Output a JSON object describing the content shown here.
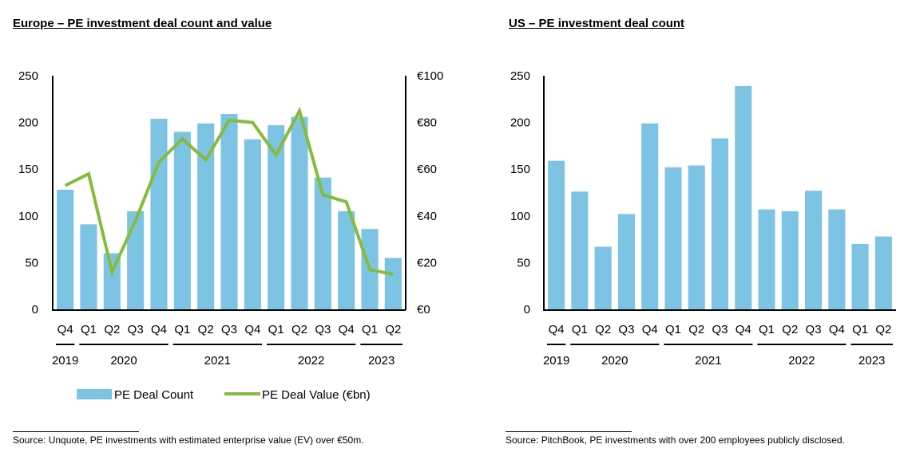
{
  "colors": {
    "bar": "#7dc4e4",
    "line": "#86bb3c",
    "axis": "#000000"
  },
  "chart_data": [
    {
      "type": "bar+line",
      "title": "Europe – PE investment deal count and value",
      "categories": [
        "Q4",
        "Q1",
        "Q2",
        "Q3",
        "Q4",
        "Q1",
        "Q2",
        "Q3",
        "Q4",
        "Q1",
        "Q2",
        "Q3",
        "Q4",
        "Q1",
        "Q2"
      ],
      "year_groups": [
        {
          "label": "2019",
          "start": 0,
          "end": 0
        },
        {
          "label": "2020",
          "start": 1,
          "end": 4
        },
        {
          "label": "2021",
          "start": 5,
          "end": 8
        },
        {
          "label": "2022",
          "start": 9,
          "end": 12
        },
        {
          "label": "2023",
          "start": 13,
          "end": 14
        }
      ],
      "series": [
        {
          "name": "PE Deal Count",
          "type": "bar",
          "axis": "left",
          "values": [
            128,
            91,
            60,
            105,
            204,
            190,
            199,
            209,
            182,
            197,
            206,
            141,
            105,
            86,
            55
          ]
        },
        {
          "name": "PE Deal Value (€bn)",
          "type": "line",
          "axis": "right",
          "values": [
            53,
            58,
            16,
            38,
            63,
            73,
            64,
            81,
            80,
            66,
            85,
            49,
            46,
            17,
            15
          ]
        }
      ],
      "ylim_left": [
        0,
        250
      ],
      "yticks_left": [
        "0",
        "50",
        "100",
        "150",
        "200",
        "250"
      ],
      "ylim_right": [
        0,
        100
      ],
      "yticks_right": [
        "€0",
        "€20",
        "€40",
        "€60",
        "€80",
        "€100"
      ],
      "legend": [
        "PE Deal Count",
        "PE Deal Value (€bn)"
      ],
      "legend_position": "bottom",
      "grid": false,
      "source": "Source:  Unquote, PE investments with estimated enterprise value (EV) over €50m."
    },
    {
      "type": "bar",
      "title": "US – PE investment deal count",
      "categories": [
        "Q4",
        "Q1",
        "Q2",
        "Q3",
        "Q4",
        "Q1",
        "Q2",
        "Q3",
        "Q4",
        "Q1",
        "Q2",
        "Q3",
        "Q4",
        "Q1",
        "Q2"
      ],
      "year_groups": [
        {
          "label": "2019",
          "start": 0,
          "end": 0
        },
        {
          "label": "2020",
          "start": 1,
          "end": 4
        },
        {
          "label": "2021",
          "start": 5,
          "end": 8
        },
        {
          "label": "2022",
          "start": 9,
          "end": 12
        },
        {
          "label": "2023",
          "start": 13,
          "end": 14
        }
      ],
      "series": [
        {
          "name": "PE Deal Count",
          "type": "bar",
          "axis": "left",
          "values": [
            159,
            126,
            67,
            102,
            199,
            152,
            154,
            183,
            239,
            107,
            105,
            127,
            107,
            70,
            78
          ]
        }
      ],
      "ylim_left": [
        0,
        250
      ],
      "yticks_left": [
        "0",
        "50",
        "100",
        "150",
        "200",
        "250"
      ],
      "grid": false,
      "source": "Source:  PitchBook, PE investments with over 200 employees publicly disclosed."
    }
  ]
}
